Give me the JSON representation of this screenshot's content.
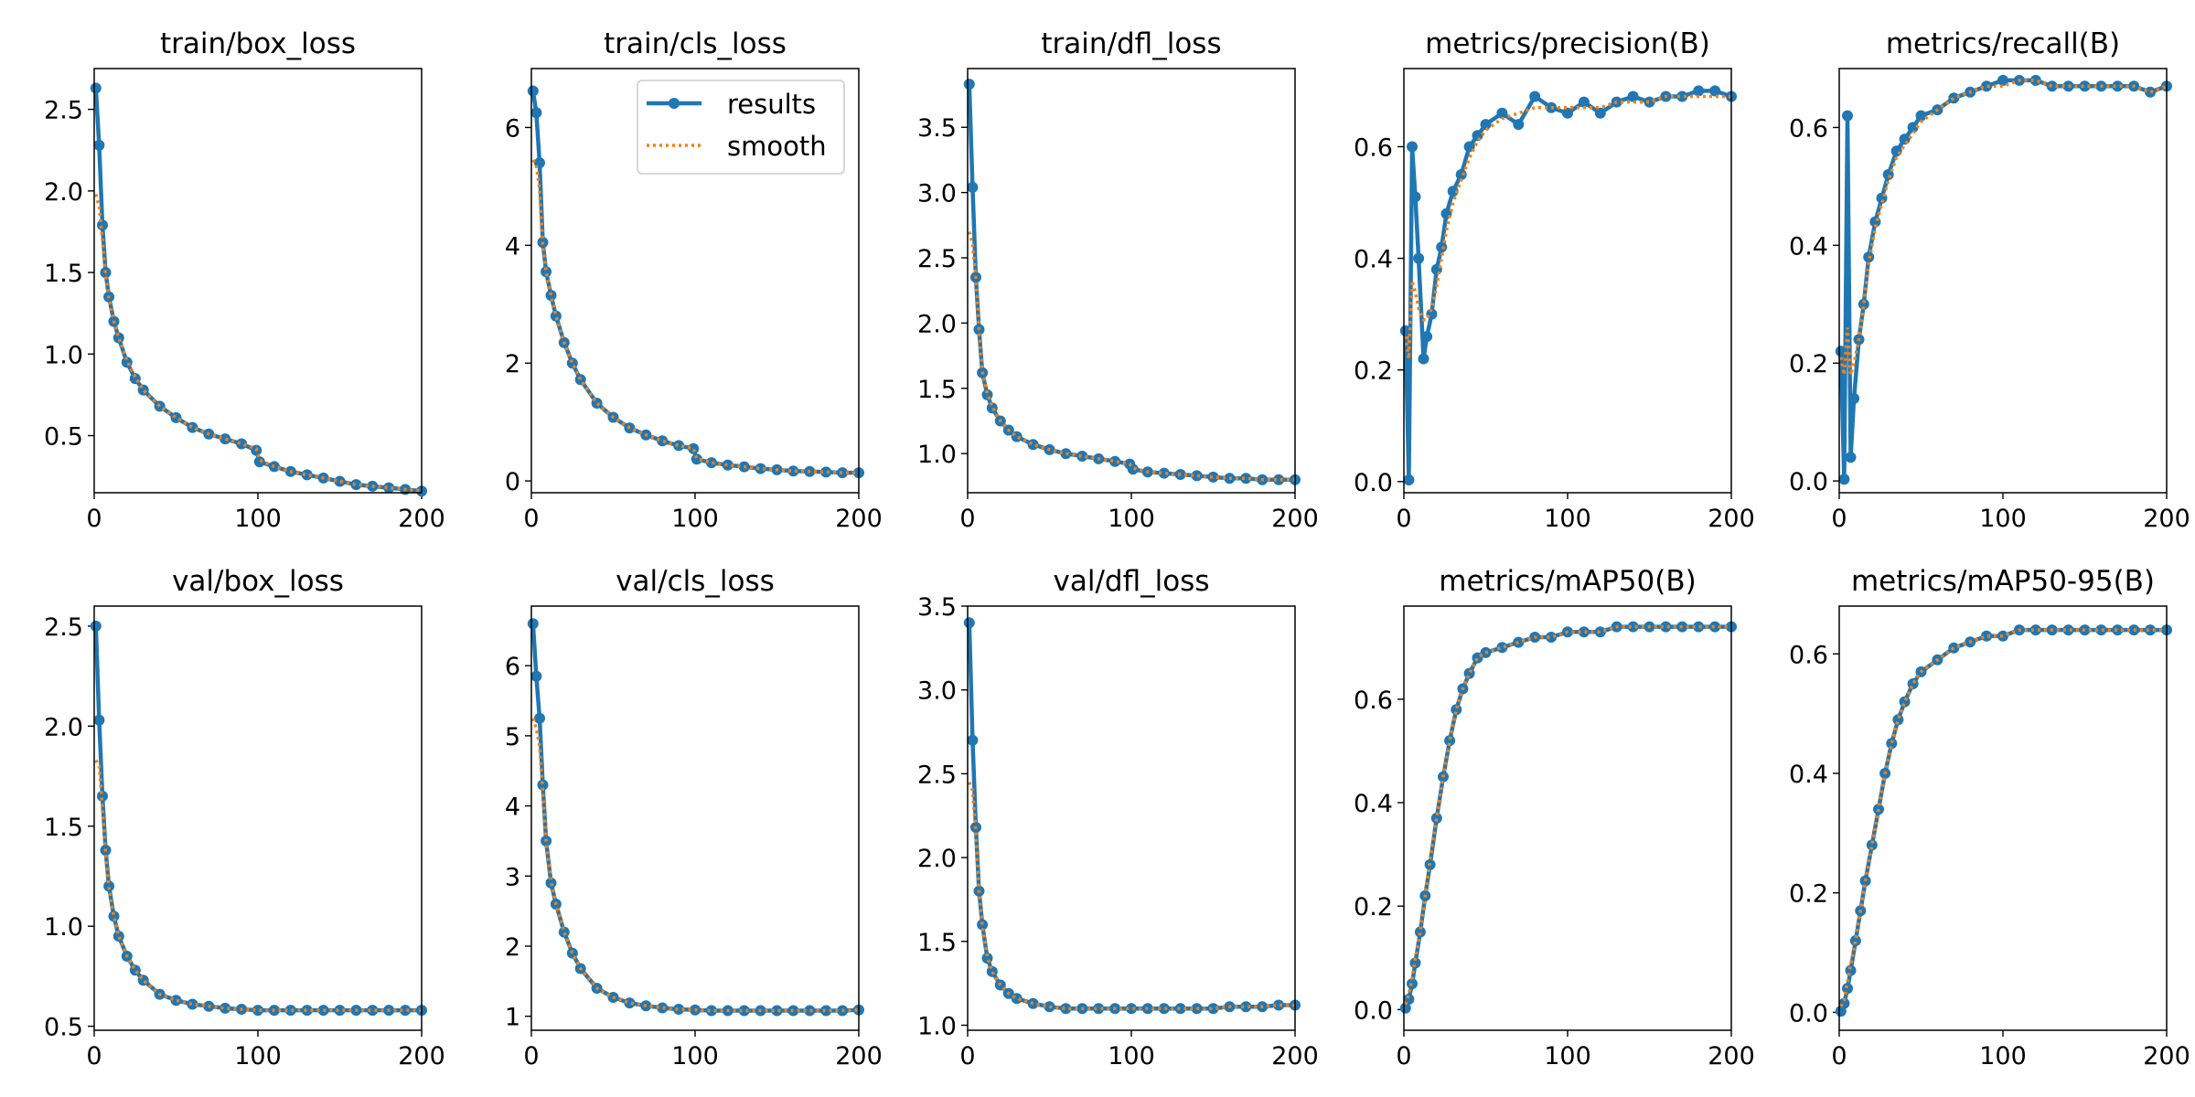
{
  "legend": {
    "position": "upper right of second panel",
    "results_label": "results",
    "smooth_label": "smooth"
  },
  "colors": {
    "results": "#1f77b4",
    "smooth": "#ff7f0e",
    "axes": "#000000"
  },
  "chart_data": [
    {
      "type": "line",
      "title": "train/box_loss",
      "xlim": [
        0,
        200
      ],
      "ylim": [
        0.15,
        2.75
      ],
      "xticks": [
        0,
        100,
        200
      ],
      "yticks": [
        0.5,
        1.0,
        1.5,
        2.0,
        2.5
      ],
      "ytick_labels": [
        "0.5",
        "1.0",
        "1.5",
        "2.0",
        "2.5"
      ],
      "x": [
        1,
        3,
        5,
        7,
        9,
        12,
        15,
        20,
        25,
        30,
        40,
        50,
        60,
        70,
        80,
        90,
        99,
        101,
        110,
        120,
        130,
        140,
        150,
        160,
        170,
        180,
        190,
        200
      ],
      "y": [
        2.63,
        2.28,
        1.79,
        1.5,
        1.35,
        1.2,
        1.1,
        0.95,
        0.85,
        0.78,
        0.68,
        0.61,
        0.55,
        0.51,
        0.48,
        0.45,
        0.41,
        0.34,
        0.31,
        0.28,
        0.26,
        0.24,
        0.22,
        0.2,
        0.19,
        0.18,
        0.17,
        0.16
      ],
      "smooth": [
        1.98,
        1.9,
        1.7,
        1.48,
        1.34,
        1.2,
        1.1,
        0.96,
        0.86,
        0.78,
        0.68,
        0.61,
        0.55,
        0.51,
        0.48,
        0.45,
        0.42,
        0.35,
        0.31,
        0.28,
        0.26,
        0.24,
        0.22,
        0.2,
        0.19,
        0.18,
        0.17,
        0.16
      ]
    },
    {
      "type": "line",
      "title": "train/cls_loss",
      "xlim": [
        0,
        200
      ],
      "ylim": [
        -0.2,
        7.0
      ],
      "xticks": [
        0,
        100,
        200
      ],
      "yticks": [
        0,
        2,
        4,
        6
      ],
      "ytick_labels": [
        "0",
        "2",
        "4",
        "6"
      ],
      "x": [
        1,
        3,
        5,
        7,
        9,
        12,
        15,
        20,
        25,
        30,
        40,
        50,
        60,
        70,
        80,
        90,
        99,
        101,
        110,
        120,
        130,
        140,
        150,
        160,
        170,
        180,
        190,
        200
      ],
      "y": [
        6.62,
        6.25,
        5.4,
        4.05,
        3.55,
        3.15,
        2.8,
        2.35,
        2.0,
        1.72,
        1.32,
        1.08,
        0.9,
        0.78,
        0.68,
        0.6,
        0.55,
        0.37,
        0.31,
        0.27,
        0.24,
        0.21,
        0.19,
        0.17,
        0.16,
        0.15,
        0.14,
        0.14
      ],
      "smooth": [
        5.45,
        5.35,
        4.95,
        4.0,
        3.55,
        3.15,
        2.8,
        2.35,
        2.0,
        1.72,
        1.32,
        1.08,
        0.9,
        0.78,
        0.68,
        0.6,
        0.55,
        0.38,
        0.31,
        0.27,
        0.24,
        0.21,
        0.19,
        0.17,
        0.16,
        0.15,
        0.14,
        0.14
      ]
    },
    {
      "type": "line",
      "title": "train/dfl_loss",
      "xlim": [
        0,
        200
      ],
      "ylim": [
        0.7,
        3.95
      ],
      "xticks": [
        0,
        100,
        200
      ],
      "yticks": [
        1.0,
        1.5,
        2.0,
        2.5,
        3.0,
        3.5
      ],
      "ytick_labels": [
        "1.0",
        "1.5",
        "2.0",
        "2.5",
        "3.0",
        "3.5"
      ],
      "x": [
        1,
        3,
        5,
        7,
        9,
        12,
        15,
        20,
        25,
        30,
        40,
        50,
        60,
        70,
        80,
        90,
        99,
        101,
        110,
        120,
        130,
        140,
        150,
        160,
        170,
        180,
        190,
        200
      ],
      "y": [
        3.83,
        3.04,
        2.35,
        1.95,
        1.62,
        1.45,
        1.35,
        1.25,
        1.18,
        1.13,
        1.07,
        1.03,
        1.0,
        0.98,
        0.96,
        0.94,
        0.92,
        0.88,
        0.86,
        0.85,
        0.84,
        0.83,
        0.82,
        0.81,
        0.81,
        0.8,
        0.8,
        0.8
      ],
      "smooth": [
        2.7,
        2.6,
        2.35,
        1.95,
        1.63,
        1.46,
        1.36,
        1.25,
        1.18,
        1.13,
        1.07,
        1.03,
        1.0,
        0.98,
        0.96,
        0.94,
        0.92,
        0.89,
        0.86,
        0.85,
        0.84,
        0.83,
        0.82,
        0.81,
        0.81,
        0.8,
        0.8,
        0.8
      ]
    },
    {
      "type": "line",
      "title": "metrics/precision(B)",
      "xlim": [
        0,
        200
      ],
      "ylim": [
        -0.02,
        0.74
      ],
      "xticks": [
        0,
        100,
        200
      ],
      "yticks": [
        0.0,
        0.2,
        0.4,
        0.6
      ],
      "ytick_labels": [
        "0.0",
        "0.2",
        "0.4",
        "0.6"
      ],
      "x": [
        1,
        3,
        5,
        7,
        9,
        12,
        14,
        17,
        20,
        23,
        26,
        30,
        35,
        40,
        45,
        50,
        60,
        70,
        80,
        90,
        100,
        110,
        120,
        130,
        140,
        150,
        160,
        170,
        180,
        190,
        200
      ],
      "y": [
        0.27,
        0.003,
        0.6,
        0.51,
        0.4,
        0.22,
        0.26,
        0.3,
        0.38,
        0.42,
        0.48,
        0.52,
        0.55,
        0.6,
        0.62,
        0.64,
        0.66,
        0.64,
        0.69,
        0.67,
        0.66,
        0.68,
        0.66,
        0.68,
        0.69,
        0.68,
        0.69,
        0.69,
        0.7,
        0.7,
        0.69
      ],
      "smooth": [
        0.26,
        0.22,
        0.36,
        0.34,
        0.31,
        0.29,
        0.29,
        0.31,
        0.35,
        0.4,
        0.45,
        0.5,
        0.54,
        0.58,
        0.61,
        0.63,
        0.65,
        0.66,
        0.67,
        0.67,
        0.67,
        0.67,
        0.67,
        0.68,
        0.68,
        0.68,
        0.69,
        0.69,
        0.69,
        0.69,
        0.69
      ]
    },
    {
      "type": "line",
      "title": "metrics/recall(B)",
      "xlim": [
        0,
        200
      ],
      "ylim": [
        -0.02,
        0.7
      ],
      "xticks": [
        0,
        100,
        200
      ],
      "yticks": [
        0.0,
        0.2,
        0.4,
        0.6
      ],
      "ytick_labels": [
        "0.0",
        "0.2",
        "0.4",
        "0.6"
      ],
      "x": [
        1,
        3,
        5,
        7,
        9,
        12,
        15,
        18,
        22,
        26,
        30,
        35,
        40,
        45,
        50,
        60,
        70,
        80,
        90,
        100,
        110,
        120,
        130,
        140,
        150,
        160,
        170,
        180,
        190,
        200
      ],
      "y": [
        0.22,
        0.003,
        0.62,
        0.04,
        0.14,
        0.24,
        0.3,
        0.38,
        0.44,
        0.48,
        0.52,
        0.56,
        0.58,
        0.6,
        0.62,
        0.63,
        0.65,
        0.66,
        0.67,
        0.68,
        0.68,
        0.68,
        0.67,
        0.67,
        0.67,
        0.67,
        0.67,
        0.67,
        0.66,
        0.67
      ],
      "smooth": [
        0.21,
        0.18,
        0.26,
        0.18,
        0.2,
        0.24,
        0.3,
        0.37,
        0.43,
        0.47,
        0.51,
        0.55,
        0.57,
        0.59,
        0.61,
        0.63,
        0.65,
        0.66,
        0.67,
        0.67,
        0.68,
        0.68,
        0.67,
        0.67,
        0.67,
        0.67,
        0.67,
        0.67,
        0.66,
        0.67
      ]
    },
    {
      "type": "line",
      "title": "val/box_loss",
      "xlim": [
        0,
        200
      ],
      "ylim": [
        0.48,
        2.6
      ],
      "xticks": [
        0,
        100,
        200
      ],
      "yticks": [
        0.5,
        1.0,
        1.5,
        2.0,
        2.5
      ],
      "ytick_labels": [
        "0.5",
        "1.0",
        "1.5",
        "2.0",
        "2.5"
      ],
      "x": [
        1,
        3,
        5,
        7,
        9,
        12,
        15,
        20,
        25,
        30,
        40,
        50,
        60,
        70,
        80,
        90,
        100,
        110,
        120,
        130,
        140,
        150,
        160,
        170,
        180,
        190,
        200
      ],
      "y": [
        2.5,
        2.03,
        1.65,
        1.38,
        1.2,
        1.05,
        0.95,
        0.85,
        0.78,
        0.73,
        0.66,
        0.63,
        0.61,
        0.6,
        0.59,
        0.585,
        0.58,
        0.58,
        0.58,
        0.58,
        0.58,
        0.58,
        0.58,
        0.58,
        0.58,
        0.58,
        0.58
      ],
      "smooth": [
        1.83,
        1.8,
        1.6,
        1.36,
        1.19,
        1.05,
        0.95,
        0.85,
        0.78,
        0.73,
        0.66,
        0.63,
        0.61,
        0.6,
        0.59,
        0.585,
        0.58,
        0.58,
        0.58,
        0.58,
        0.58,
        0.58,
        0.58,
        0.58,
        0.58,
        0.58,
        0.58
      ]
    },
    {
      "type": "line",
      "title": "val/cls_loss",
      "xlim": [
        0,
        200
      ],
      "ylim": [
        0.8,
        6.85
      ],
      "xticks": [
        0,
        100,
        200
      ],
      "yticks": [
        1,
        2,
        3,
        4,
        5,
        6
      ],
      "ytick_labels": [
        "1",
        "2",
        "3",
        "4",
        "5",
        "6"
      ],
      "x": [
        1,
        3,
        5,
        7,
        9,
        12,
        15,
        20,
        25,
        30,
        40,
        50,
        60,
        70,
        80,
        90,
        100,
        110,
        120,
        130,
        140,
        150,
        160,
        170,
        180,
        190,
        200
      ],
      "y": [
        6.6,
        5.85,
        5.25,
        4.3,
        3.5,
        2.9,
        2.6,
        2.2,
        1.9,
        1.68,
        1.4,
        1.27,
        1.19,
        1.15,
        1.12,
        1.1,
        1.09,
        1.08,
        1.08,
        1.08,
        1.08,
        1.08,
        1.08,
        1.08,
        1.08,
        1.08,
        1.09
      ],
      "smooth": [
        5.25,
        5.1,
        4.85,
        4.2,
        3.5,
        2.92,
        2.6,
        2.2,
        1.9,
        1.68,
        1.4,
        1.27,
        1.19,
        1.15,
        1.12,
        1.1,
        1.09,
        1.08,
        1.08,
        1.08,
        1.08,
        1.08,
        1.08,
        1.08,
        1.08,
        1.08,
        1.09
      ]
    },
    {
      "type": "line",
      "title": "val/dfl_loss",
      "xlim": [
        0,
        200
      ],
      "ylim": [
        0.97,
        3.5
      ],
      "xticks": [
        0,
        100,
        200
      ],
      "yticks": [
        1.0,
        1.5,
        2.0,
        2.5,
        3.0,
        3.5
      ],
      "ytick_labels": [
        "1.0",
        "1.5",
        "2.0",
        "2.5",
        "3.0",
        "3.5"
      ],
      "x": [
        1,
        3,
        5,
        7,
        9,
        12,
        15,
        20,
        25,
        30,
        40,
        50,
        60,
        70,
        80,
        90,
        100,
        110,
        120,
        130,
        140,
        150,
        160,
        170,
        180,
        190,
        200
      ],
      "y": [
        3.4,
        2.7,
        2.18,
        1.8,
        1.6,
        1.4,
        1.32,
        1.24,
        1.19,
        1.16,
        1.13,
        1.11,
        1.1,
        1.1,
        1.1,
        1.1,
        1.1,
        1.1,
        1.1,
        1.1,
        1.1,
        1.1,
        1.11,
        1.11,
        1.11,
        1.12,
        1.12
      ],
      "smooth": [
        2.45,
        2.4,
        2.15,
        1.8,
        1.59,
        1.41,
        1.32,
        1.24,
        1.19,
        1.16,
        1.13,
        1.11,
        1.1,
        1.1,
        1.1,
        1.1,
        1.1,
        1.1,
        1.1,
        1.1,
        1.1,
        1.1,
        1.11,
        1.11,
        1.11,
        1.12,
        1.12
      ]
    },
    {
      "type": "line",
      "title": "metrics/mAP50(B)",
      "xlim": [
        0,
        200
      ],
      "ylim": [
        -0.04,
        0.78
      ],
      "xticks": [
        0,
        100,
        200
      ],
      "yticks": [
        0.0,
        0.2,
        0.4,
        0.6
      ],
      "ytick_labels": [
        "0.0",
        "0.2",
        "0.4",
        "0.6"
      ],
      "x": [
        1,
        3,
        5,
        7,
        10,
        13,
        16,
        20,
        24,
        28,
        32,
        36,
        40,
        45,
        50,
        60,
        70,
        80,
        90,
        100,
        110,
        120,
        130,
        140,
        150,
        160,
        170,
        180,
        190,
        200
      ],
      "y": [
        0.003,
        0.02,
        0.05,
        0.09,
        0.15,
        0.22,
        0.28,
        0.37,
        0.45,
        0.52,
        0.58,
        0.62,
        0.65,
        0.68,
        0.69,
        0.7,
        0.71,
        0.72,
        0.72,
        0.73,
        0.73,
        0.73,
        0.74,
        0.74,
        0.74,
        0.74,
        0.74,
        0.74,
        0.74,
        0.74
      ],
      "smooth": [
        0.01,
        0.03,
        0.06,
        0.1,
        0.15,
        0.22,
        0.29,
        0.37,
        0.45,
        0.52,
        0.58,
        0.62,
        0.65,
        0.68,
        0.69,
        0.7,
        0.71,
        0.72,
        0.72,
        0.73,
        0.73,
        0.73,
        0.74,
        0.74,
        0.74,
        0.74,
        0.74,
        0.74,
        0.74,
        0.74
      ]
    },
    {
      "type": "line",
      "title": "metrics/mAP50-95(B)",
      "xlim": [
        0,
        200
      ],
      "ylim": [
        -0.03,
        0.68
      ],
      "xticks": [
        0,
        100,
        200
      ],
      "yticks": [
        0.0,
        0.2,
        0.4,
        0.6
      ],
      "ytick_labels": [
        "0.0",
        "0.2",
        "0.4",
        "0.6"
      ],
      "x": [
        1,
        3,
        5,
        7,
        10,
        13,
        16,
        20,
        24,
        28,
        32,
        36,
        40,
        45,
        50,
        60,
        70,
        80,
        90,
        100,
        110,
        120,
        130,
        140,
        150,
        160,
        170,
        180,
        190,
        200
      ],
      "y": [
        0.002,
        0.015,
        0.04,
        0.07,
        0.12,
        0.17,
        0.22,
        0.28,
        0.34,
        0.4,
        0.45,
        0.49,
        0.52,
        0.55,
        0.57,
        0.59,
        0.61,
        0.62,
        0.63,
        0.63,
        0.64,
        0.64,
        0.64,
        0.64,
        0.64,
        0.64,
        0.64,
        0.64,
        0.64,
        0.64
      ],
      "smooth": [
        0.01,
        0.02,
        0.05,
        0.08,
        0.12,
        0.17,
        0.22,
        0.28,
        0.34,
        0.4,
        0.45,
        0.49,
        0.52,
        0.55,
        0.57,
        0.59,
        0.61,
        0.62,
        0.63,
        0.63,
        0.64,
        0.64,
        0.64,
        0.64,
        0.64,
        0.64,
        0.64,
        0.64,
        0.64,
        0.64
      ]
    }
  ]
}
